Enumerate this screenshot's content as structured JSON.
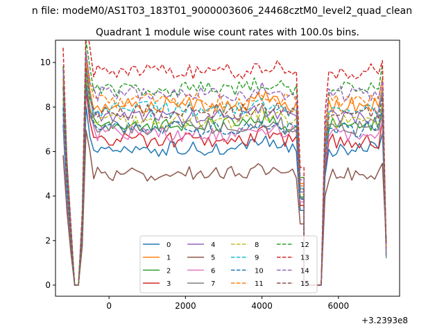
{
  "chart_data": {
    "type": "line",
    "suptitle": "n file: modeM0/AS1T03_183T01_9000003606_24468cztM0_level2_quad_clean",
    "title": "Quadrant 1 module wise count rates with 100.0s bins.",
    "xlabel": "",
    "ylabel": "",
    "x_offset_label": "+3.2393e8",
    "xlim": [
      -1400,
      7600
    ],
    "ylim": [
      -0.5,
      11.0
    ],
    "x_ticks": [
      0,
      2000,
      4000,
      6000
    ],
    "y_ticks": [
      0,
      2,
      4,
      6,
      8,
      10
    ],
    "legend_position": "lower center",
    "legend_columns": 4,
    "gaps": [
      {
        "description": "data gap",
        "x_start": -950,
        "x_end": -850,
        "value": 0
      },
      {
        "description": "data gap",
        "x_start": 5100,
        "x_end": 5500,
        "value": 0
      }
    ],
    "segments": [
      {
        "x_start": -1200,
        "x_end": 5150
      },
      {
        "x_start": 5550,
        "x_end": 7250
      }
    ],
    "series": [
      {
        "name": "0",
        "style": "solid",
        "color": "#1f77b4",
        "mean": 6.1
      },
      {
        "name": "1",
        "style": "solid",
        "color": "#ff7f0e",
        "mean": 8.1
      },
      {
        "name": "2",
        "style": "solid",
        "color": "#2ca02c",
        "mean": 7.2
      },
      {
        "name": "3",
        "style": "solid",
        "color": "#d62728",
        "mean": 6.5
      },
      {
        "name": "4",
        "style": "solid",
        "color": "#9467bd",
        "mean": 7.6
      },
      {
        "name": "5",
        "style": "solid",
        "color": "#8c564b",
        "mean": 5.0
      },
      {
        "name": "6",
        "style": "solid",
        "color": "#e377c2",
        "mean": 6.8
      },
      {
        "name": "7",
        "style": "solid",
        "color": "#7f7f7f",
        "mean": 7.1
      },
      {
        "name": "8",
        "style": "dashed",
        "color": "#bcbd22",
        "mean": 7.4
      },
      {
        "name": "9",
        "style": "dashed",
        "color": "#17becf",
        "mean": 7.9
      },
      {
        "name": "10",
        "style": "dashed",
        "color": "#1f77b4",
        "mean": 7.0
      },
      {
        "name": "11",
        "style": "dashed",
        "color": "#ff7f0e",
        "mean": 8.3
      },
      {
        "name": "12",
        "style": "dashed",
        "color": "#2ca02c",
        "mean": 8.8
      },
      {
        "name": "13",
        "style": "dashed",
        "color": "#d62728",
        "mean": 9.6
      },
      {
        "name": "14",
        "style": "dashed",
        "color": "#9467bd",
        "mean": 8.6
      },
      {
        "name": "15",
        "style": "dashed",
        "color": "#8c564b",
        "mean": 7.8
      }
    ]
  }
}
